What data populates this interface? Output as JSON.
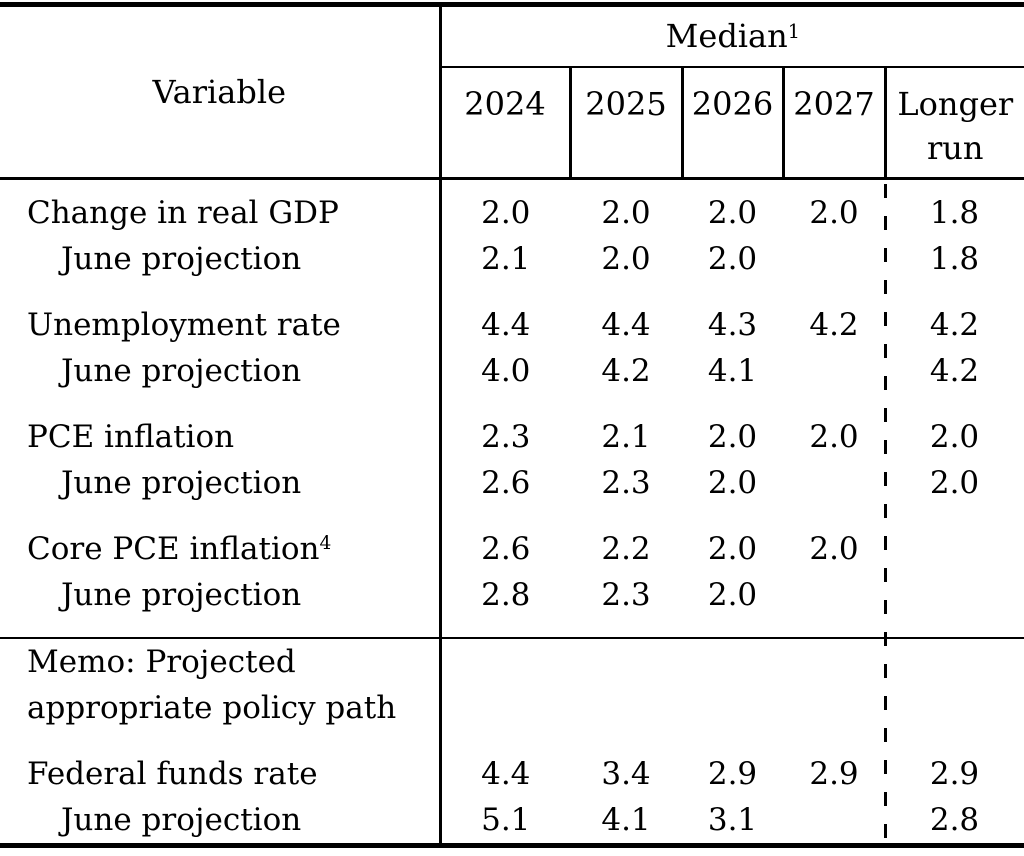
{
  "header": {
    "variable": "Variable",
    "median": "Median",
    "median_sup": "1",
    "years": [
      "2024",
      "2025",
      "2026",
      "2027"
    ],
    "longer_run": "Longer run"
  },
  "sections": [
    {
      "type": "group",
      "rows": [
        {
          "label": "Change in real GDP",
          "sup": "",
          "indent": false,
          "values": [
            "2.0",
            "2.0",
            "2.0",
            "2.0",
            "1.8"
          ]
        },
        {
          "label": "June projection",
          "sup": "",
          "indent": true,
          "values": [
            "2.1",
            "2.0",
            "2.0",
            "",
            "1.8"
          ]
        }
      ]
    },
    {
      "type": "group",
      "rows": [
        {
          "label": "Unemployment rate",
          "sup": "",
          "indent": false,
          "values": [
            "4.4",
            "4.4",
            "4.3",
            "4.2",
            "4.2"
          ]
        },
        {
          "label": "June projection",
          "sup": "",
          "indent": true,
          "values": [
            "4.0",
            "4.2",
            "4.1",
            "",
            "4.2"
          ]
        }
      ]
    },
    {
      "type": "group",
      "rows": [
        {
          "label": "PCE inflation",
          "sup": "",
          "indent": false,
          "values": [
            "2.3",
            "2.1",
            "2.0",
            "2.0",
            "2.0"
          ]
        },
        {
          "label": "June projection",
          "sup": "",
          "indent": true,
          "values": [
            "2.6",
            "2.3",
            "2.0",
            "",
            "2.0"
          ]
        }
      ]
    },
    {
      "type": "group",
      "rows": [
        {
          "label": "Core PCE inflation",
          "sup": "4",
          "indent": false,
          "values": [
            "2.6",
            "2.2",
            "2.0",
            "2.0",
            ""
          ]
        },
        {
          "label": "June projection",
          "sup": "",
          "indent": true,
          "values": [
            "2.8",
            "2.3",
            "2.0",
            "",
            ""
          ]
        }
      ]
    },
    {
      "type": "memo",
      "lines": [
        "Memo: Projected",
        "appropriate policy path"
      ]
    },
    {
      "type": "group",
      "rows": [
        {
          "label": "Federal funds rate",
          "sup": "",
          "indent": false,
          "values": [
            "4.4",
            "3.4",
            "2.9",
            "2.9",
            "2.9"
          ]
        },
        {
          "label": "June projection",
          "sup": "",
          "indent": true,
          "values": [
            "5.1",
            "4.1",
            "3.1",
            "",
            "2.8"
          ]
        }
      ]
    }
  ],
  "colors": {
    "background": "#ffffff",
    "text": "#000000",
    "rule": "#000000"
  }
}
